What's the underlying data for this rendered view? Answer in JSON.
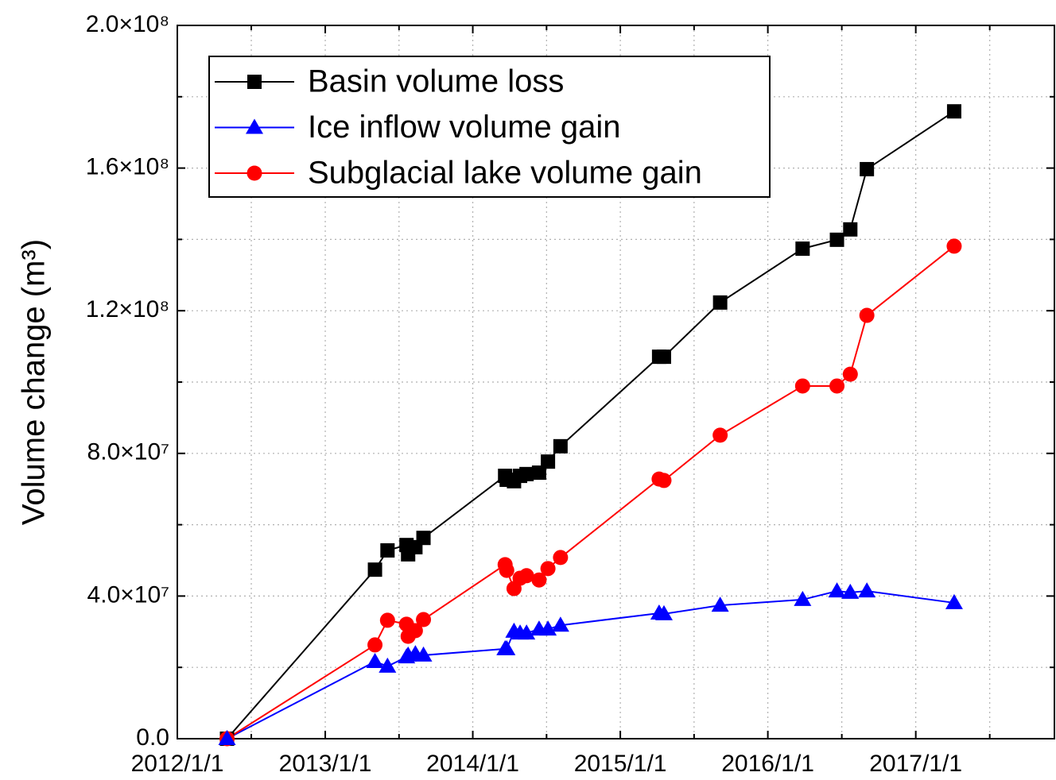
{
  "chart_data": {
    "type": "line",
    "y_label": "Volume change (m³)",
    "x": [
      "2012/5/3",
      "2013/5/4",
      "2013/6/4",
      "2013/7/21",
      "2013/7/25",
      "2013/8/12",
      "2013/9/1",
      "2014/3/22",
      "2014/3/26",
      "2014/4/13",
      "2014/4/28",
      "2014/5/14",
      "2014/6/14",
      "2014/7/6",
      "2014/8/6",
      "2015/4/7",
      "2015/4/19",
      "2015/9/5",
      "2016/3/27",
      "2016/6/20",
      "2016/7/23",
      "2016/9/2",
      "2017/4/6"
    ],
    "series": [
      {
        "name": "Basin volume loss",
        "color": "#000000",
        "marker": "square",
        "values": [
          0,
          47400000,
          52800000,
          54300000,
          51700000,
          53700000,
          56300000,
          73700000,
          72600000,
          72200000,
          73700000,
          74200000,
          74600000,
          77700000,
          82000000,
          107100000,
          107100000,
          122300000,
          137400000,
          139900000,
          142800000,
          159700000,
          175900000
        ]
      },
      {
        "name": "Ice inflow volume gain",
        "color": "#0000ff",
        "marker": "triangle",
        "values": [
          0,
          21600000,
          20300000,
          22900000,
          23400000,
          23800000,
          23400000,
          25200000,
          25200000,
          30100000,
          29600000,
          29600000,
          30700000,
          30700000,
          31800000,
          35200000,
          35000000,
          37400000,
          39000000,
          41400000,
          41000000,
          41400000,
          38100000
        ]
      },
      {
        "name": "Subglacial lake volume gain",
        "color": "#ff0000",
        "marker": "circle",
        "values": [
          0,
          26300000,
          33200000,
          32100000,
          28700000,
          30300000,
          33400000,
          48800000,
          47200000,
          42100000,
          45000000,
          45700000,
          44500000,
          47700000,
          50800000,
          72800000,
          72400000,
          85100000,
          98900000,
          98900000,
          102200000,
          118700000,
          138100000
        ]
      }
    ],
    "xlim": [
      "2012/1/1",
      "2017/12/10"
    ],
    "xticks": [
      "2012/1/1",
      "2013/1/1",
      "2014/1/1",
      "2015/1/1",
      "2016/1/1",
      "2017/1/1"
    ],
    "ylim": [
      0,
      200000000
    ],
    "yticks": [
      {
        "value": 0,
        "label": "0.0"
      },
      {
        "value": 40000000,
        "label": "4.0×10⁷"
      },
      {
        "value": 80000000,
        "label": "8.0×10⁷"
      },
      {
        "value": 120000000,
        "label": "1.2×10⁸"
      },
      {
        "value": 160000000,
        "label": "1.6×10⁸"
      },
      {
        "value": 200000000,
        "label": "2.0×10⁸"
      }
    ],
    "grid": true,
    "legend": "upper left"
  }
}
